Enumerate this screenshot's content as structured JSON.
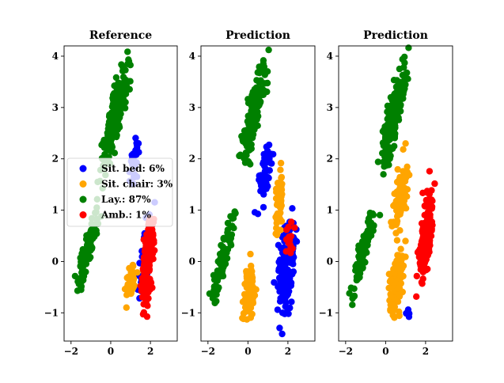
{
  "chart_data": [
    {
      "type": "scatter",
      "title": "Reference",
      "xlim": [
        -2.35,
        3.35
      ],
      "ylim": [
        -1.55,
        4.2
      ],
      "xticks": [
        -2,
        0,
        2
      ],
      "yticks": [
        -1,
        0,
        1,
        2,
        3,
        4
      ],
      "legend": {
        "placement": "center-left",
        "entries": [
          {
            "label": "Sit. bed: 6%",
            "color": "#0000ff"
          },
          {
            "label": "Sit. chair: 3%",
            "color": "#ffa500"
          },
          {
            "label": "Lay.: 87%",
            "color": "#008000"
          },
          {
            "label": "Amb.: 1%",
            "color": "#ff0000"
          }
        ]
      },
      "series": [
        {
          "color": "#008000",
          "clusters": [
            {
              "center": [
                0.25,
                2.85
              ],
              "axis": [
                0.5,
                0.86
              ],
              "len": 1.2,
              "wid": 0.28,
              "n": 200
            },
            {
              "center": [
                -1.2,
                0.15
              ],
              "axis": [
                0.55,
                0.83
              ],
              "len": 0.95,
              "wid": 0.2,
              "n": 110
            }
          ]
        },
        {
          "color": "#0000ff",
          "clusters": [
            {
              "center": [
                1.2,
                1.9
              ],
              "axis": [
                0.2,
                0.98
              ],
              "len": 0.55,
              "wid": 0.22,
              "n": 30
            },
            {
              "center": [
                1.8,
                0.1
              ],
              "axis": [
                0.3,
                0.95
              ],
              "len": 0.9,
              "wid": 0.32,
              "n": 40
            }
          ]
        },
        {
          "color": "#ffa500",
          "clusters": [
            {
              "center": [
                1.0,
                -0.4
              ],
              "axis": [
                0.6,
                0.8
              ],
              "len": 0.45,
              "wid": 0.22,
              "n": 35
            }
          ]
        },
        {
          "color": "#ff0000",
          "clusters": [
            {
              "center": [
                1.85,
                -0.05
              ],
              "axis": [
                0.2,
                0.98
              ],
              "len": 0.8,
              "wid": 0.28,
              "n": 150
            }
          ]
        }
      ]
    },
    {
      "type": "scatter",
      "title": "Prediction",
      "xlim": [
        -2.35,
        3.35
      ],
      "ylim": [
        -1.55,
        4.2
      ],
      "xticks": [
        -2,
        0,
        2
      ],
      "yticks": [
        -1,
        0,
        1,
        2,
        3,
        4
      ],
      "series": [
        {
          "color": "#008000",
          "clusters": [
            {
              "center": [
                0.3,
                2.9
              ],
              "axis": [
                0.5,
                0.86
              ],
              "len": 1.1,
              "wid": 0.27,
              "n": 190
            },
            {
              "center": [
                -1.2,
                0.15
              ],
              "axis": [
                0.55,
                0.83
              ],
              "len": 0.95,
              "wid": 0.2,
              "n": 110
            }
          ]
        },
        {
          "color": "#0000ff",
          "clusters": [
            {
              "center": [
                0.85,
                1.7
              ],
              "axis": [
                0.35,
                0.94
              ],
              "len": 0.7,
              "wid": 0.25,
              "n": 45
            },
            {
              "center": [
                1.9,
                -0.2
              ],
              "axis": [
                0.2,
                0.98
              ],
              "len": 0.9,
              "wid": 0.38,
              "n": 170
            }
          ]
        },
        {
          "color": "#ffa500",
          "clusters": [
            {
              "center": [
                1.55,
                1.1
              ],
              "axis": [
                0.1,
                0.99
              ],
              "len": 0.75,
              "wid": 0.2,
              "n": 55
            },
            {
              "center": [
                0.05,
                -0.6
              ],
              "axis": [
                0.1,
                0.99
              ],
              "len": 0.55,
              "wid": 0.28,
              "n": 90
            }
          ]
        },
        {
          "color": "#ff0000",
          "clusters": [
            {
              "center": [
                2.1,
                0.45
              ],
              "axis": [
                0.3,
                0.95
              ],
              "len": 0.4,
              "wid": 0.25,
              "n": 15
            }
          ]
        }
      ]
    },
    {
      "type": "scatter",
      "title": "Prediction",
      "xlim": [
        -2.35,
        3.35
      ],
      "ylim": [
        -1.55,
        4.2
      ],
      "xticks": [
        -2,
        0,
        2
      ],
      "yticks": [
        -1,
        0,
        1,
        2,
        3,
        4
      ],
      "series": [
        {
          "color": "#008000",
          "clusters": [
            {
              "center": [
                0.4,
                2.85
              ],
              "axis": [
                0.5,
                0.86
              ],
              "len": 1.15,
              "wid": 0.3,
              "n": 200
            },
            {
              "center": [
                -1.15,
                0.15
              ],
              "axis": [
                0.55,
                0.83
              ],
              "len": 0.95,
              "wid": 0.2,
              "n": 110
            }
          ]
        },
        {
          "color": "#ffa500",
          "clusters": [
            {
              "center": [
                0.75,
                1.25
              ],
              "axis": [
                0.3,
                0.95
              ],
              "len": 0.75,
              "wid": 0.28,
              "n": 80
            },
            {
              "center": [
                0.55,
                -0.4
              ],
              "axis": [
                0.3,
                0.95
              ],
              "len": 0.6,
              "wid": 0.3,
              "n": 110
            }
          ]
        },
        {
          "color": "#ff0000",
          "clusters": [
            {
              "center": [
                2.0,
                0.5
              ],
              "axis": [
                0.3,
                0.95
              ],
              "len": 0.95,
              "wid": 0.3,
              "n": 150
            }
          ]
        },
        {
          "color": "#0000ff",
          "clusters": [
            {
              "center": [
                1.2,
                -1.0
              ],
              "axis": [
                1,
                0
              ],
              "len": 0.2,
              "wid": 0.15,
              "n": 6
            }
          ]
        }
      ]
    }
  ]
}
